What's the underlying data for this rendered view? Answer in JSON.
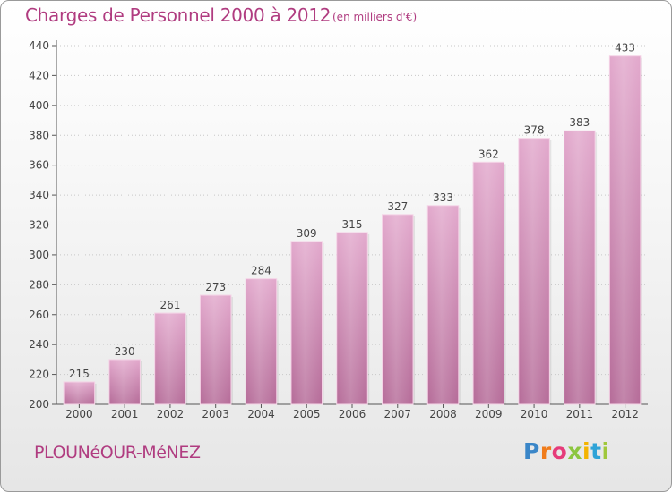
{
  "title": "Charges de Personnel 2000 à 2012",
  "unit_note": "(en milliers d'€)",
  "commune": "PLOUNéOUR-MéNEZ",
  "logo": {
    "letters": [
      "P",
      "r",
      "o",
      "x",
      "i",
      "t",
      "i"
    ],
    "colors": [
      "#3a86c8",
      "#f07c1b",
      "#e63b7a",
      "#8cc63f",
      "#f4b400",
      "#2fa3d7",
      "#a0c83c"
    ]
  },
  "colors": {
    "bar_top": "#e2a8cc",
    "bar_bottom": "#b56b98",
    "text": "#b03c80",
    "axis": "#555555"
  },
  "chart_data": {
    "type": "bar",
    "title": "Charges de Personnel 2000 à 2012",
    "categories": [
      "2000",
      "2001",
      "2002",
      "2003",
      "2004",
      "2005",
      "2006",
      "2007",
      "2008",
      "2009",
      "2010",
      "2011",
      "2012"
    ],
    "values": [
      215,
      230,
      261,
      273,
      284,
      309,
      315,
      327,
      333,
      362,
      378,
      383,
      433
    ],
    "ylim": [
      200,
      440
    ],
    "yticks": [
      200,
      220,
      240,
      260,
      280,
      300,
      320,
      340,
      360,
      380,
      400,
      420,
      440
    ],
    "grid": true,
    "xlabel": "",
    "ylabel": ""
  }
}
